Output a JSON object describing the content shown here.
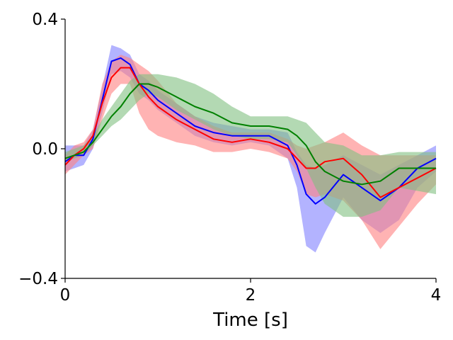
{
  "chart_data": {
    "type": "line",
    "title": "",
    "xlabel": "Time [s]",
    "ylabel": "",
    "xlim": [
      0,
      4
    ],
    "ylim": [
      -0.4,
      0.4
    ],
    "xticks": [
      0,
      2,
      4
    ],
    "xtick_labels": [
      "0",
      "2",
      "4"
    ],
    "yticks": [
      -0.4,
      0.0,
      0.4
    ],
    "ytick_labels": [
      "−0.4",
      "0.0",
      "0.4"
    ],
    "grid": false,
    "legend": "none",
    "x": [
      0.0,
      0.1,
      0.2,
      0.3,
      0.4,
      0.5,
      0.6,
      0.7,
      0.8,
      0.9,
      1.0,
      1.2,
      1.4,
      1.6,
      1.8,
      2.0,
      2.2,
      2.4,
      2.5,
      2.6,
      2.7,
      2.8,
      3.0,
      3.2,
      3.4,
      3.6,
      3.8,
      4.0
    ],
    "series": [
      {
        "name": "blue",
        "color": "#0000ff",
        "band_color": "#8080ff",
        "values": [
          -0.04,
          -0.02,
          -0.02,
          0.03,
          0.15,
          0.27,
          0.28,
          0.26,
          0.2,
          0.18,
          0.15,
          0.11,
          0.07,
          0.05,
          0.04,
          0.04,
          0.04,
          0.01,
          -0.05,
          -0.14,
          -0.17,
          -0.15,
          -0.08,
          -0.12,
          -0.16,
          -0.12,
          -0.06,
          -0.03
        ],
        "lower": [
          -0.07,
          -0.06,
          -0.05,
          0.0,
          0.11,
          0.23,
          0.24,
          0.22,
          0.17,
          0.15,
          0.12,
          0.08,
          0.04,
          0.02,
          0.01,
          0.02,
          0.01,
          -0.03,
          -0.12,
          -0.3,
          -0.32,
          -0.26,
          -0.15,
          -0.22,
          -0.26,
          -0.22,
          -0.12,
          -0.07
        ],
        "upper": [
          0.01,
          0.01,
          0.01,
          0.06,
          0.19,
          0.32,
          0.31,
          0.29,
          0.23,
          0.21,
          0.18,
          0.14,
          0.1,
          0.08,
          0.07,
          0.06,
          0.06,
          0.05,
          -0.01,
          -0.05,
          -0.06,
          -0.05,
          -0.02,
          -0.05,
          -0.08,
          -0.05,
          -0.02,
          0.01
        ]
      },
      {
        "name": "red",
        "color": "#ff0000",
        "band_color": "#ff8080",
        "values": [
          -0.05,
          -0.02,
          0.0,
          0.04,
          0.14,
          0.22,
          0.25,
          0.25,
          0.2,
          0.16,
          0.13,
          0.09,
          0.06,
          0.03,
          0.02,
          0.03,
          0.02,
          0.0,
          -0.03,
          -0.06,
          -0.06,
          -0.04,
          -0.03,
          -0.08,
          -0.15,
          -0.12,
          -0.09,
          -0.06
        ],
        "lower": [
          -0.08,
          -0.05,
          -0.02,
          0.0,
          0.09,
          0.17,
          0.2,
          0.2,
          0.11,
          0.06,
          0.04,
          0.02,
          0.01,
          -0.01,
          -0.01,
          0.0,
          -0.01,
          -0.03,
          -0.07,
          -0.14,
          -0.15,
          -0.14,
          -0.16,
          -0.22,
          -0.31,
          -0.24,
          -0.17,
          -0.11
        ],
        "upper": [
          -0.02,
          0.01,
          0.02,
          0.06,
          0.2,
          0.27,
          0.29,
          0.28,
          0.26,
          0.24,
          0.21,
          0.14,
          0.1,
          0.07,
          0.05,
          0.05,
          0.05,
          0.03,
          0.01,
          0.0,
          0.01,
          0.02,
          0.05,
          0.01,
          -0.02,
          -0.02,
          -0.02,
          -0.02
        ]
      },
      {
        "name": "green",
        "color": "#008000",
        "band_color": "#80c080",
        "values": [
          -0.03,
          -0.02,
          -0.01,
          0.02,
          0.06,
          0.1,
          0.13,
          0.17,
          0.2,
          0.2,
          0.19,
          0.16,
          0.13,
          0.11,
          0.08,
          0.07,
          0.07,
          0.06,
          0.04,
          0.01,
          -0.04,
          -0.07,
          -0.1,
          -0.11,
          -0.1,
          -0.06,
          -0.06,
          -0.06
        ],
        "lower": [
          -0.04,
          -0.03,
          -0.02,
          0.01,
          0.04,
          0.07,
          0.09,
          0.12,
          0.15,
          0.17,
          0.16,
          0.12,
          0.09,
          0.06,
          0.04,
          0.03,
          0.03,
          0.02,
          -0.02,
          -0.06,
          -0.12,
          -0.17,
          -0.21,
          -0.21,
          -0.19,
          -0.12,
          -0.13,
          -0.14
        ],
        "upper": [
          -0.01,
          0.0,
          0.01,
          0.04,
          0.09,
          0.13,
          0.17,
          0.21,
          0.23,
          0.23,
          0.23,
          0.22,
          0.2,
          0.17,
          0.13,
          0.1,
          0.1,
          0.1,
          0.09,
          0.08,
          0.05,
          0.02,
          0.01,
          -0.02,
          -0.02,
          -0.01,
          -0.01,
          -0.01
        ]
      }
    ]
  }
}
